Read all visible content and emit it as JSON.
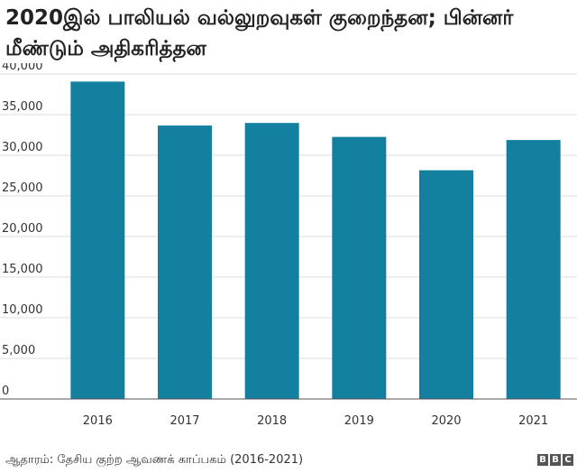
{
  "title": "2020இல் பாலியல் வல்லுறவுகள் குறைந்தன; பின்னர் மீண்டும் அதிகரித்தன",
  "chart_data": {
    "type": "bar",
    "categories": [
      "2016",
      "2017",
      "2018",
      "2019",
      "2020",
      "2021"
    ],
    "values": [
      39068,
      33658,
      33977,
      32260,
      28153,
      31878
    ],
    "ylim": [
      0,
      40000
    ],
    "yticks": [
      "0",
      "5,000",
      "10,000",
      "15,000",
      "20,000",
      "25,000",
      "30,000",
      "35,000",
      "40,000"
    ],
    "bar_color": "#1480a0",
    "grid": true
  },
  "footer": {
    "source": "ஆதாரம்: தேசிய குற்ற ஆவணக் காப்பகம் (2016-2021)",
    "logo_letters": [
      "B",
      "B",
      "C"
    ]
  }
}
